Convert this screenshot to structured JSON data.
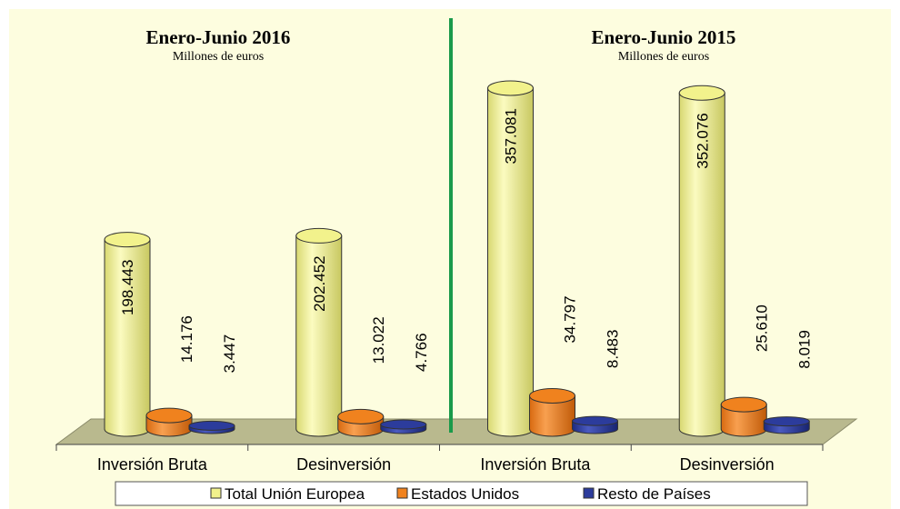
{
  "chart_data": {
    "type": "bar",
    "panels": [
      {
        "title": "Enero-Junio 2016",
        "subtitle": "Millones de euros"
      },
      {
        "title": "Enero-Junio 2015",
        "subtitle": "Millones de euros"
      }
    ],
    "categories": [
      "Inversión Bruta",
      "Desinversión",
      "Inversión Bruta",
      "Desinversión"
    ],
    "series": [
      {
        "name": "Total Unión Europea",
        "color": "#f2f28c",
        "values": [
          198443,
          202452,
          357081,
          352076
        ],
        "value_labels": [
          "198.443",
          "202.452",
          "357.081",
          "352.076"
        ]
      },
      {
        "name": "Estados Unidos",
        "color": "#f0821e",
        "values": [
          14176,
          13022,
          34797,
          25610
        ],
        "value_labels": [
          "14.176",
          "13.022",
          "34.797",
          "25.610"
        ]
      },
      {
        "name": "Resto de Países",
        "color": "#2c3c9c",
        "values": [
          3447,
          4766,
          8483,
          8019
        ],
        "value_labels": [
          "3.447",
          "4.766",
          "8.483",
          "8.019"
        ]
      }
    ],
    "legend": "bottom"
  }
}
